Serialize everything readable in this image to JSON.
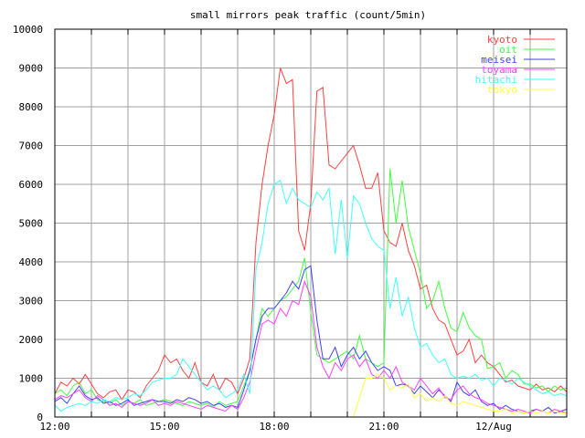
{
  "chart_data": {
    "type": "line",
    "title": "small mirrors peak traffic (count/5min)",
    "xlabel": "",
    "ylabel": "",
    "ylim": [
      0,
      10000
    ],
    "xlim": [
      "12:00",
      "02:00"
    ],
    "yticks": [
      0,
      1000,
      2000,
      3000,
      4000,
      5000,
      6000,
      7000,
      8000,
      9000,
      10000
    ],
    "xtick_labels": [
      {
        "at": "12:00",
        "label": "12:00"
      },
      {
        "at": "15:00",
        "label": "15:00"
      },
      {
        "at": "18:00",
        "label": "18:00"
      },
      {
        "at": "21:00",
        "label": "21:00"
      },
      {
        "at": "00:00",
        "label": "12/Aug"
      }
    ],
    "grid": true,
    "legend_position": "top-right",
    "x": [
      "12:00",
      "12:10",
      "12:20",
      "12:30",
      "12:40",
      "12:50",
      "13:00",
      "13:10",
      "13:20",
      "13:30",
      "13:40",
      "13:50",
      "14:00",
      "14:10",
      "14:20",
      "14:30",
      "14:40",
      "14:50",
      "15:00",
      "15:10",
      "15:20",
      "15:30",
      "15:40",
      "15:50",
      "16:00",
      "16:10",
      "16:20",
      "16:30",
      "16:40",
      "16:50",
      "17:00",
      "17:10",
      "17:20",
      "17:30",
      "17:40",
      "17:50",
      "18:00",
      "18:10",
      "18:20",
      "18:30",
      "18:40",
      "18:50",
      "19:00",
      "19:10",
      "19:20",
      "19:30",
      "19:40",
      "19:50",
      "20:00",
      "20:10",
      "20:20",
      "20:30",
      "20:40",
      "20:50",
      "21:00",
      "21:10",
      "21:20",
      "21:30",
      "21:40",
      "21:50",
      "22:00",
      "22:10",
      "22:20",
      "22:30",
      "22:40",
      "22:50",
      "23:00",
      "23:10",
      "23:20",
      "23:30",
      "23:40",
      "23:50",
      "00:00",
      "00:10",
      "00:20",
      "00:30",
      "00:40",
      "00:50",
      "01:00",
      "01:10",
      "01:20",
      "01:30",
      "01:40",
      "01:50",
      "02:00"
    ],
    "series": [
      {
        "name": "kyoto",
        "color": "#ff4040",
        "values": [
          600,
          900,
          800,
          1000,
          850,
          1100,
          850,
          600,
          500,
          650,
          700,
          450,
          700,
          650,
          500,
          800,
          1000,
          1200,
          1600,
          1400,
          1500,
          1200,
          1000,
          1400,
          900,
          800,
          1100,
          700,
          1000,
          900,
          600,
          1000,
          1500,
          4500,
          6000,
          7000,
          7800,
          9000,
          8600,
          8700,
          4800,
          4300,
          5500,
          8400,
          8500,
          6500,
          6400,
          6600,
          6800,
          7000,
          6500,
          5900,
          5900,
          6300,
          4800,
          4500,
          4400,
          5000,
          4300,
          3900,
          3300,
          3400,
          2800,
          2500,
          2400,
          2000,
          1600,
          1700,
          2000,
          1400,
          1600,
          1400,
          1300,
          1100,
          900,
          950,
          800,
          750,
          700,
          850,
          700,
          750,
          650,
          800,
          650
        ]
      },
      {
        "name": "oit",
        "color": "#40ff40",
        "values": [
          600,
          700,
          550,
          800,
          900,
          600,
          700,
          450,
          400,
          350,
          450,
          300,
          400,
          350,
          450,
          300,
          350,
          400,
          450,
          400,
          350,
          300,
          400,
          350,
          300,
          350,
          250,
          400,
          300,
          350,
          400,
          800,
          1200,
          2000,
          2800,
          2600,
          2800,
          3000,
          3100,
          3300,
          3500,
          4100,
          2700,
          1600,
          1500,
          1400,
          1500,
          1600,
          1700,
          1500,
          2100,
          1500,
          1400,
          1300,
          1400,
          6400,
          5000,
          6100,
          4900,
          4300,
          3700,
          2800,
          3000,
          3500,
          2800,
          2300,
          2200,
          2700,
          2300,
          2100,
          2000,
          1250,
          1300,
          1400,
          1000,
          1200,
          1100,
          850,
          850,
          750,
          800,
          650,
          800,
          700,
          750
        ]
      },
      {
        "name": "meisei",
        "color": "#4040ff",
        "values": [
          400,
          500,
          350,
          600,
          800,
          550,
          450,
          500,
          350,
          400,
          300,
          350,
          450,
          300,
          350,
          400,
          450,
          400,
          400,
          350,
          450,
          400,
          500,
          450,
          350,
          400,
          300,
          350,
          250,
          300,
          250,
          700,
          1200,
          2000,
          2600,
          2800,
          2800,
          3000,
          3200,
          3500,
          3300,
          3800,
          3900,
          2500,
          1500,
          1500,
          1800,
          1300,
          1600,
          1800,
          1500,
          1700,
          1400,
          1200,
          1300,
          1200,
          800,
          850,
          800,
          600,
          800,
          650,
          500,
          700,
          550,
          400,
          900,
          650,
          550,
          700,
          400,
          300,
          350,
          200,
          300,
          200,
          150,
          100,
          150,
          200,
          150,
          250,
          100,
          150,
          200
        ]
      },
      {
        "name": "toyama",
        "color": "#ff40ff",
        "values": [
          450,
          550,
          500,
          600,
          700,
          500,
          400,
          550,
          450,
          300,
          350,
          250,
          400,
          350,
          300,
          350,
          450,
          300,
          350,
          300,
          400,
          350,
          300,
          250,
          200,
          300,
          250,
          200,
          150,
          300,
          200,
          500,
          900,
          1700,
          2400,
          2500,
          2400,
          2800,
          2600,
          3000,
          2900,
          3500,
          3100,
          1800,
          1300,
          1000,
          1400,
          1200,
          1500,
          1600,
          1300,
          1500,
          1100,
          1000,
          1200,
          1000,
          1300,
          900,
          800,
          700,
          1000,
          800,
          600,
          750,
          500,
          450,
          700,
          800,
          600,
          500,
          450,
          350,
          300,
          250,
          200,
          150,
          200,
          150,
          100,
          200,
          150,
          100,
          200,
          150,
          100
        ]
      },
      {
        "name": "hitachi",
        "color": "#40ffff",
        "values": [
          300,
          150,
          250,
          300,
          350,
          300,
          400,
          350,
          450,
          400,
          500,
          450,
          500,
          600,
          550,
          700,
          900,
          950,
          1000,
          1000,
          1100,
          1500,
          1300,
          1100,
          900,
          700,
          800,
          700,
          500,
          600,
          700,
          1100,
          600,
          3800,
          4500,
          5500,
          6000,
          6100,
          5500,
          5900,
          5600,
          5500,
          5400,
          5800,
          5600,
          5900,
          4200,
          5600,
          4100,
          5700,
          5500,
          5000,
          4600,
          4400,
          4300,
          2800,
          3600,
          2600,
          3100,
          2300,
          1800,
          1900,
          1600,
          1400,
          1500,
          1100,
          1000,
          1050,
          1000,
          1100,
          950,
          1000,
          800,
          1000,
          950,
          850,
          1000,
          900,
          800,
          700,
          600,
          650,
          550,
          600,
          550
        ]
      },
      {
        "name": "tokyo",
        "color": "#ffff40",
        "values": [
          0,
          0,
          0,
          0,
          0,
          0,
          0,
          0,
          0,
          0,
          0,
          0,
          0,
          0,
          0,
          0,
          0,
          0,
          0,
          0,
          0,
          0,
          0,
          0,
          0,
          0,
          0,
          0,
          0,
          0,
          0,
          0,
          0,
          0,
          0,
          0,
          0,
          0,
          0,
          0,
          0,
          0,
          0,
          0,
          0,
          0,
          0,
          0,
          0,
          0,
          500,
          1000,
          1000,
          1100,
          1000,
          700,
          800,
          750,
          850,
          500,
          600,
          400,
          500,
          400,
          550,
          350,
          300,
          400,
          350,
          300,
          250,
          200,
          150,
          150,
          200,
          100,
          150,
          100,
          150,
          100,
          150,
          100,
          150,
          100,
          100
        ]
      }
    ]
  }
}
